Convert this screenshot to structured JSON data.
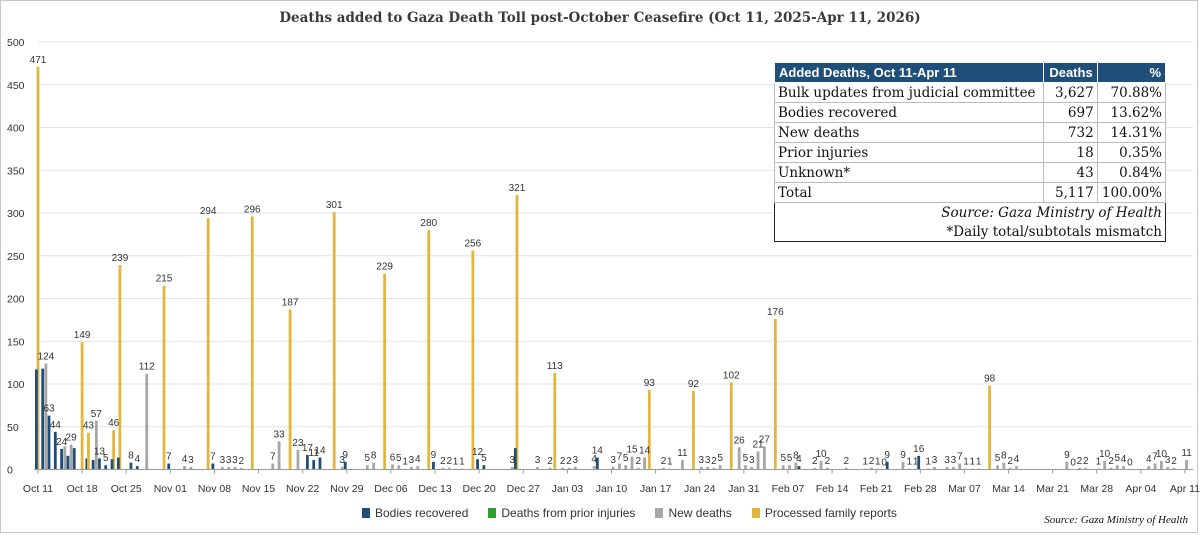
{
  "chart_data": {
    "type": "bar",
    "title": "Deaths added to Gaza Death Toll post-October Ceasefire (Oct 11, 2025-Apr 11, 2026)",
    "ylim": [
      0,
      500
    ],
    "y_ticks": [
      "0",
      "50",
      "100",
      "150",
      "200",
      "250",
      "300",
      "350",
      "400",
      "450",
      "500"
    ],
    "x_tick_labels": [
      "Oct 11",
      "Oct 18",
      "Oct 25",
      "Nov 01",
      "Nov 08",
      "Nov 15",
      "Nov 22",
      "Nov 29",
      "Dec 06",
      "Dec 13",
      "Dec 20",
      "Dec 27",
      "Jan 03",
      "Jan 10",
      "Jan 17",
      "Jan 24",
      "Jan 31",
      "Feb 07",
      "Feb 14",
      "Feb 21",
      "Feb 28",
      "Mar 07",
      "Mar 14",
      "Mar 21",
      "Mar 28",
      "Apr 04",
      "Apr 11"
    ],
    "legend_position": "bottom",
    "series": [
      {
        "name": "Bodies recovered",
        "color": "#1f4e79"
      },
      {
        "name": "Deaths from prior injuries",
        "color": "#2ca02c"
      },
      {
        "name": "New deaths",
        "color": "#a6a6a6"
      },
      {
        "name": "Processed family reports",
        "color": "#e3b53c"
      }
    ],
    "bars": [
      {
        "day": 0,
        "s": 3,
        "v": 471,
        "l": "471"
      },
      {
        "day": 0,
        "s": 0,
        "v": 117
      },
      {
        "day": 1,
        "s": 0,
        "v": 118
      },
      {
        "day": 1,
        "s": 2,
        "v": 124,
        "l": "124"
      },
      {
        "day": 2,
        "s": 0,
        "v": 63,
        "l": "63"
      },
      {
        "day": 3,
        "s": 0,
        "v": 44,
        "l": "44"
      },
      {
        "day": 4,
        "s": 0,
        "v": 24,
        "l": "24"
      },
      {
        "day": 4,
        "s": 2,
        "v": 27
      },
      {
        "day": 5,
        "s": 0,
        "v": 16
      },
      {
        "day": 5,
        "s": 2,
        "v": 29,
        "l": "29"
      },
      {
        "day": 6,
        "s": 0,
        "v": 25
      },
      {
        "day": 7,
        "s": 3,
        "v": 149,
        "l": "149"
      },
      {
        "day": 8,
        "s": 0,
        "v": 13
      },
      {
        "day": 8,
        "s": 3,
        "v": 43,
        "l": "43"
      },
      {
        "day": 9,
        "s": 0,
        "v": 11
      },
      {
        "day": 9,
        "s": 2,
        "v": 57,
        "l": "57"
      },
      {
        "day": 10,
        "s": 0,
        "v": 13,
        "l": "13"
      },
      {
        "day": 11,
        "s": 0,
        "v": 5,
        "l": "5"
      },
      {
        "day": 12,
        "s": 3,
        "v": 46,
        "l": "46"
      },
      {
        "day": 12,
        "s": 0,
        "v": 12
      },
      {
        "day": 13,
        "s": 3,
        "v": 239,
        "l": "239"
      },
      {
        "day": 13,
        "s": 0,
        "v": 14
      },
      {
        "day": 15,
        "s": 0,
        "v": 8,
        "l": "8"
      },
      {
        "day": 16,
        "s": 0,
        "v": 4,
        "l": "4"
      },
      {
        "day": 17,
        "s": 2,
        "v": 112,
        "l": "112"
      },
      {
        "day": 20,
        "s": 3,
        "v": 215,
        "l": "215"
      },
      {
        "day": 21,
        "s": 0,
        "v": 7,
        "l": "7"
      },
      {
        "day": 23,
        "s": 2,
        "v": 4,
        "l": "4"
      },
      {
        "day": 24,
        "s": 2,
        "v": 3,
        "l": "3"
      },
      {
        "day": 27,
        "s": 3,
        "v": 294,
        "l": "294"
      },
      {
        "day": 28,
        "s": 0,
        "v": 7,
        "l": "7"
      },
      {
        "day": 29,
        "s": 2,
        "v": 3,
        "l": "3"
      },
      {
        "day": 30,
        "s": 2,
        "v": 3,
        "l": "3"
      },
      {
        "day": 31,
        "s": 2,
        "v": 3,
        "l": "3"
      },
      {
        "day": 32,
        "s": 2,
        "v": 2,
        "l": "2"
      },
      {
        "day": 34,
        "s": 3,
        "v": 296,
        "l": "296"
      },
      {
        "day": 37,
        "s": 2,
        "v": 7,
        "l": "7"
      },
      {
        "day": 38,
        "s": 2,
        "v": 33,
        "l": "33"
      },
      {
        "day": 40,
        "s": 3,
        "v": 187,
        "l": "187"
      },
      {
        "day": 41,
        "s": 2,
        "v": 23,
        "l": "23"
      },
      {
        "day": 43,
        "s": 0,
        "v": 17,
        "l": "17"
      },
      {
        "day": 44,
        "s": 0,
        "v": 11,
        "l": "11"
      },
      {
        "day": 45,
        "s": 0,
        "v": 14,
        "l": "14"
      },
      {
        "day": 47,
        "s": 3,
        "v": 301,
        "l": "301"
      },
      {
        "day": 48,
        "s": 2,
        "v": 3,
        "l": "3"
      },
      {
        "day": 49,
        "s": 0,
        "v": 9,
        "l": "9"
      },
      {
        "day": 52,
        "s": 2,
        "v": 5,
        "l": "5"
      },
      {
        "day": 53,
        "s": 2,
        "v": 8,
        "l": "8"
      },
      {
        "day": 55,
        "s": 3,
        "v": 229,
        "l": "229"
      },
      {
        "day": 56,
        "s": 2,
        "v": 6,
        "l": "6"
      },
      {
        "day": 57,
        "s": 2,
        "v": 5,
        "l": "5"
      },
      {
        "day": 58,
        "s": 2,
        "v": 1,
        "l": "1"
      },
      {
        "day": 59,
        "s": 2,
        "v": 3,
        "l": "3"
      },
      {
        "day": 60,
        "s": 2,
        "v": 4,
        "l": "4"
      },
      {
        "day": 62,
        "s": 3,
        "v": 280,
        "l": "280"
      },
      {
        "day": 63,
        "s": 0,
        "v": 9,
        "l": "9"
      },
      {
        "day": 64,
        "s": 2,
        "v": 2,
        "l": "2"
      },
      {
        "day": 65,
        "s": 2,
        "v": 2,
        "l": "2"
      },
      {
        "day": 66,
        "s": 2,
        "v": 1,
        "l": "1"
      },
      {
        "day": 67,
        "s": 2,
        "v": 1,
        "l": "1"
      },
      {
        "day": 69,
        "s": 3,
        "v": 256,
        "l": "256"
      },
      {
        "day": 70,
        "s": 0,
        "v": 12,
        "l": "12"
      },
      {
        "day": 71,
        "s": 0,
        "v": 5,
        "l": "5"
      },
      {
        "day": 75,
        "s": 2,
        "v": 3,
        "l": "3"
      },
      {
        "day": 76,
        "s": 3,
        "v": 321,
        "l": "321"
      },
      {
        "day": 76,
        "s": 0,
        "v": 25
      },
      {
        "day": 79,
        "s": 2,
        "v": 3,
        "l": "3"
      },
      {
        "day": 81,
        "s": 2,
        "v": 2,
        "l": "2"
      },
      {
        "day": 82,
        "s": 3,
        "v": 113,
        "l": "113"
      },
      {
        "day": 83,
        "s": 2,
        "v": 2,
        "l": "2"
      },
      {
        "day": 84,
        "s": 2,
        "v": 2,
        "l": "2"
      },
      {
        "day": 85,
        "s": 2,
        "v": 3,
        "l": "3"
      },
      {
        "day": 88,
        "s": 2,
        "v": 4,
        "l": "4"
      },
      {
        "day": 89,
        "s": 0,
        "v": 14,
        "l": "14"
      },
      {
        "day": 91,
        "s": 2,
        "v": 3,
        "l": "3"
      },
      {
        "day": 92,
        "s": 2,
        "v": 7,
        "l": "7"
      },
      {
        "day": 93,
        "s": 2,
        "v": 5,
        "l": "5"
      },
      {
        "day": 94,
        "s": 2,
        "v": 15,
        "l": "15"
      },
      {
        "day": 95,
        "s": 2,
        "v": 2,
        "l": "2"
      },
      {
        "day": 96,
        "s": 2,
        "v": 14,
        "l": "14"
      },
      {
        "day": 97,
        "s": 3,
        "v": 93,
        "l": "93"
      },
      {
        "day": 99,
        "s": 2,
        "v": 2,
        "l": "2"
      },
      {
        "day": 100,
        "s": 2,
        "v": 1,
        "l": "1"
      },
      {
        "day": 102,
        "s": 2,
        "v": 11,
        "l": "11"
      },
      {
        "day": 104,
        "s": 3,
        "v": 92,
        "l": "92"
      },
      {
        "day": 105,
        "s": 2,
        "v": 3,
        "l": "3"
      },
      {
        "day": 106,
        "s": 2,
        "v": 3,
        "l": "3"
      },
      {
        "day": 107,
        "s": 2,
        "v": 2,
        "l": "2"
      },
      {
        "day": 108,
        "s": 2,
        "v": 5,
        "l": "5"
      },
      {
        "day": 110,
        "s": 3,
        "v": 102,
        "l": "102"
      },
      {
        "day": 111,
        "s": 2,
        "v": 26,
        "l": "26"
      },
      {
        "day": 112,
        "s": 2,
        "v": 5,
        "l": "5"
      },
      {
        "day": 113,
        "s": 2,
        "v": 3,
        "l": "3"
      },
      {
        "day": 114,
        "s": 2,
        "v": 21,
        "l": "21"
      },
      {
        "day": 115,
        "s": 2,
        "v": 27,
        "l": "27"
      },
      {
        "day": 117,
        "s": 3,
        "v": 176,
        "l": "176"
      },
      {
        "day": 118,
        "s": 2,
        "v": 5,
        "l": "5"
      },
      {
        "day": 119,
        "s": 2,
        "v": 5,
        "l": "5"
      },
      {
        "day": 120,
        "s": 2,
        "v": 8,
        "l": "8"
      },
      {
        "day": 121,
        "s": 0,
        "v": 4,
        "l": "4"
      },
      {
        "day": 123,
        "s": 2,
        "v": 2,
        "l": "2"
      },
      {
        "day": 124,
        "s": 2,
        "v": 10,
        "l": "10"
      },
      {
        "day": 125,
        "s": 2,
        "v": 2,
        "l": "2"
      },
      {
        "day": 128,
        "s": 2,
        "v": 2,
        "l": "2"
      },
      {
        "day": 131,
        "s": 2,
        "v": 1,
        "l": "1"
      },
      {
        "day": 132,
        "s": 2,
        "v": 2,
        "l": "2"
      },
      {
        "day": 133,
        "s": 2,
        "v": 1,
        "l": "1"
      },
      {
        "day": 134,
        "s": 2,
        "v": 0,
        "l": "0"
      },
      {
        "day": 135,
        "s": 0,
        "v": 9,
        "l": "9"
      },
      {
        "day": 137,
        "s": 2,
        "v": 9,
        "l": "9"
      },
      {
        "day": 138,
        "s": 2,
        "v": 1,
        "l": "1"
      },
      {
        "day": 139,
        "s": 2,
        "v": 1,
        "l": "1"
      },
      {
        "day": 140,
        "s": 0,
        "v": 16,
        "l": "16"
      },
      {
        "day": 141,
        "s": 2,
        "v": 1,
        "l": "1"
      },
      {
        "day": 142,
        "s": 2,
        "v": 3,
        "l": "3"
      },
      {
        "day": 144,
        "s": 2,
        "v": 3,
        "l": "3"
      },
      {
        "day": 145,
        "s": 2,
        "v": 3,
        "l": "3"
      },
      {
        "day": 146,
        "s": 2,
        "v": 7,
        "l": "7"
      },
      {
        "day": 147,
        "s": 2,
        "v": 1,
        "l": "1"
      },
      {
        "day": 148,
        "s": 2,
        "v": 1,
        "l": "1"
      },
      {
        "day": 149,
        "s": 2,
        "v": 1,
        "l": "1"
      },
      {
        "day": 151,
        "s": 3,
        "v": 98,
        "l": "98"
      },
      {
        "day": 152,
        "s": 2,
        "v": 5,
        "l": "5"
      },
      {
        "day": 153,
        "s": 2,
        "v": 8,
        "l": "8"
      },
      {
        "day": 154,
        "s": 2,
        "v": 2,
        "l": "2"
      },
      {
        "day": 155,
        "s": 2,
        "v": 4,
        "l": "4"
      },
      {
        "day": 163,
        "s": 2,
        "v": 9,
        "l": "9"
      },
      {
        "day": 164,
        "s": 2,
        "v": 0,
        "l": "0"
      },
      {
        "day": 165,
        "s": 2,
        "v": 2,
        "l": "2"
      },
      {
        "day": 166,
        "s": 2,
        "v": 2,
        "l": "2"
      },
      {
        "day": 168,
        "s": 2,
        "v": 1,
        "l": "1"
      },
      {
        "day": 169,
        "s": 2,
        "v": 10,
        "l": "10"
      },
      {
        "day": 170,
        "s": 2,
        "v": 2,
        "l": "2"
      },
      {
        "day": 171,
        "s": 2,
        "v": 5,
        "l": "5"
      },
      {
        "day": 172,
        "s": 2,
        "v": 4,
        "l": "4"
      },
      {
        "day": 173,
        "s": 2,
        "v": 0,
        "l": "0"
      },
      {
        "day": 176,
        "s": 2,
        "v": 4,
        "l": "4"
      },
      {
        "day": 177,
        "s": 2,
        "v": 7,
        "l": "7"
      },
      {
        "day": 178,
        "s": 2,
        "v": 10,
        "l": "10"
      },
      {
        "day": 179,
        "s": 2,
        "v": 3,
        "l": "3"
      },
      {
        "day": 180,
        "s": 2,
        "v": 2,
        "l": "2"
      },
      {
        "day": 182,
        "s": 2,
        "v": 11,
        "l": "11"
      }
    ]
  },
  "table": {
    "headers": [
      "Added Deaths, Oct 11-Apr 11",
      "Deaths",
      "%"
    ],
    "rows": [
      [
        "Bulk updates from judicial committee",
        "3,627",
        "70.88%"
      ],
      [
        "Bodies recovered",
        "697",
        "13.62%"
      ],
      [
        "New deaths",
        "732",
        "14.31%"
      ],
      [
        "Prior injuries",
        "18",
        "0.35%"
      ],
      [
        "Unknown*",
        "43",
        "0.84%"
      ],
      [
        "Total",
        "5,117",
        "100.00%"
      ]
    ],
    "source": "Source: Gaza Ministry of Health",
    "footnote": "*Daily total/subtotals mismatch"
  },
  "legend": {
    "items": [
      "Bodies recovered",
      "Deaths from prior injuries",
      "New deaths",
      "Processed family reports"
    ]
  },
  "source_note": "Source: Gaza Ministry of Health"
}
